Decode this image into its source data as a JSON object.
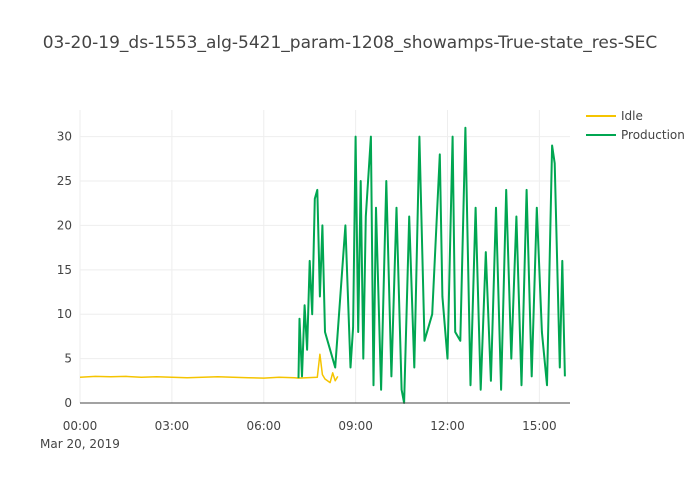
{
  "chart_data": {
    "type": "line",
    "title": "03-20-19_ds-1553_alg-5421_param-1208_showamps-True-state_res-SEC",
    "xlabel": "",
    "ylabel": "",
    "x_tick_labels": [
      "00:00",
      "03:00",
      "06:00",
      "09:00",
      "12:00",
      "15:00"
    ],
    "x_date_label": "Mar 20, 2019",
    "x_range": [
      "00:00",
      "16:00"
    ],
    "y_ticks": [
      0,
      5,
      10,
      15,
      20,
      25,
      30
    ],
    "ylim": [
      0,
      33
    ],
    "grid": true,
    "legend_position": "top-right",
    "series": [
      {
        "name": "Idle",
        "color": "#f5c400",
        "points": [
          [
            "00:00",
            2.9
          ],
          [
            "00:30",
            3.0
          ],
          [
            "01:00",
            2.95
          ],
          [
            "01:30",
            3.0
          ],
          [
            "02:00",
            2.9
          ],
          [
            "02:30",
            2.95
          ],
          [
            "03:00",
            2.9
          ],
          [
            "03:30",
            2.85
          ],
          [
            "04:00",
            2.9
          ],
          [
            "04:30",
            2.95
          ],
          [
            "05:00",
            2.9
          ],
          [
            "05:30",
            2.85
          ],
          [
            "06:00",
            2.8
          ],
          [
            "06:30",
            2.9
          ],
          [
            "07:00",
            2.85
          ],
          [
            "07:08",
            2.8
          ],
          [
            "07:45",
            2.9
          ],
          [
            "07:50",
            5.5
          ],
          [
            "07:55",
            3.2
          ],
          [
            "08:00",
            2.7
          ],
          [
            "08:10",
            2.3
          ],
          [
            "08:15",
            3.4
          ],
          [
            "08:20",
            2.5
          ],
          [
            "08:25",
            3.0
          ]
        ]
      },
      {
        "name": "Production",
        "color": "#00a651",
        "points": [
          [
            "07:08",
            2.8
          ],
          [
            "07:10",
            9.5
          ],
          [
            "07:15",
            3.0
          ],
          [
            "07:20",
            11.0
          ],
          [
            "07:25",
            6.0
          ],
          [
            "07:30",
            16.0
          ],
          [
            "07:35",
            10.0
          ],
          [
            "07:40",
            23.0
          ],
          [
            "07:45",
            24.0
          ],
          [
            "07:50",
            12.0
          ],
          [
            "07:55",
            20.0
          ],
          [
            "08:00",
            8.0
          ],
          [
            "08:10",
            6.0
          ],
          [
            "08:20",
            4.0
          ],
          [
            "08:30",
            12.0
          ],
          [
            "08:40",
            20.0
          ],
          [
            "08:50",
            4.0
          ],
          [
            "08:55",
            8.5
          ],
          [
            "09:00",
            30.0
          ],
          [
            "09:05",
            8.0
          ],
          [
            "09:10",
            25.0
          ],
          [
            "09:15",
            5.0
          ],
          [
            "09:20",
            21.0
          ],
          [
            "09:30",
            30.0
          ],
          [
            "09:35",
            2.0
          ],
          [
            "09:40",
            22.0
          ],
          [
            "09:50",
            1.5
          ],
          [
            "10:00",
            25.0
          ],
          [
            "10:10",
            3.0
          ],
          [
            "10:20",
            22.0
          ],
          [
            "10:30",
            1.5
          ],
          [
            "10:35",
            0.0
          ],
          [
            "10:45",
            21.0
          ],
          [
            "10:55",
            4.0
          ],
          [
            "11:05",
            30.0
          ],
          [
            "11:15",
            7.0
          ],
          [
            "11:30",
            10.0
          ],
          [
            "11:45",
            28.0
          ],
          [
            "11:50",
            12.0
          ],
          [
            "12:00",
            5.0
          ],
          [
            "12:10",
            30.0
          ],
          [
            "12:15",
            8.0
          ],
          [
            "12:25",
            7.0
          ],
          [
            "12:35",
            31.0
          ],
          [
            "12:45",
            2.0
          ],
          [
            "12:55",
            22.0
          ],
          [
            "13:05",
            1.5
          ],
          [
            "13:15",
            17.0
          ],
          [
            "13:25",
            2.5
          ],
          [
            "13:35",
            22.0
          ],
          [
            "13:45",
            1.5
          ],
          [
            "13:55",
            24.0
          ],
          [
            "14:05",
            5.0
          ],
          [
            "14:15",
            21.0
          ],
          [
            "14:25",
            2.0
          ],
          [
            "14:35",
            24.0
          ],
          [
            "14:45",
            3.0
          ],
          [
            "14:55",
            22.0
          ],
          [
            "15:05",
            8.0
          ],
          [
            "15:15",
            2.0
          ],
          [
            "15:25",
            29.0
          ],
          [
            "15:30",
            27.0
          ],
          [
            "15:40",
            4.0
          ],
          [
            "15:45",
            16.0
          ],
          [
            "15:50",
            3.0
          ]
        ]
      }
    ]
  }
}
